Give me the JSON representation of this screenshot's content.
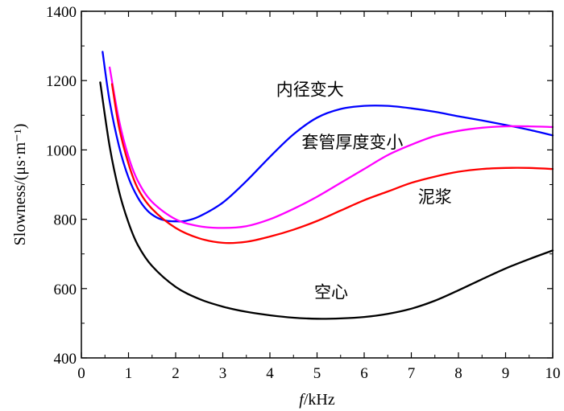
{
  "chart_data": {
    "type": "line",
    "title": "",
    "xlabel": "f/kHz",
    "xlabel_italic": "f",
    "xlabel_rest": "/kHz",
    "ylabel": "Slowness/(μs·m⁻¹)",
    "xlim": [
      0,
      10
    ],
    "ylim": [
      400,
      1400
    ],
    "x_major_ticks": [
      0,
      1,
      2,
      3,
      4,
      5,
      6,
      7,
      8,
      9,
      10
    ],
    "x_tick_labels": [
      "0",
      "1",
      "2",
      "3",
      "4",
      "5",
      "6",
      "7",
      "8",
      "9",
      "10"
    ],
    "y_major_ticks": [
      400,
      600,
      800,
      1000,
      1200,
      1400
    ],
    "y_tick_labels": [
      "400",
      "600",
      "800",
      "1000",
      "1200",
      "1400"
    ],
    "grid": false,
    "series": [
      {
        "name": "空心",
        "color": "#000000",
        "x": [
          0.4,
          0.6,
          0.8,
          1.0,
          1.2,
          1.5,
          2.0,
          2.5,
          3.0,
          3.5,
          4.0,
          4.5,
          5.0,
          5.5,
          6.0,
          6.5,
          7.0,
          7.5,
          8.0,
          8.5,
          9.0,
          9.5,
          10.0
        ],
        "y": [
          1195,
          1010,
          880,
          790,
          725,
          665,
          605,
          570,
          548,
          533,
          523,
          516,
          513,
          514,
          518,
          527,
          542,
          565,
          595,
          627,
          658,
          685,
          710
        ]
      },
      {
        "name": "内径变大",
        "color": "#0000ff",
        "x": [
          0.45,
          0.6,
          0.8,
          1.0,
          1.2,
          1.4,
          1.6,
          1.8,
          2.0,
          2.2,
          2.5,
          3.0,
          3.5,
          4.0,
          4.5,
          5.0,
          5.5,
          6.0,
          6.5,
          7.0,
          7.5,
          8.0,
          8.5,
          9.0,
          9.5,
          10.0
        ],
        "y": [
          1283,
          1140,
          1010,
          920,
          862,
          825,
          805,
          796,
          794,
          795,
          808,
          848,
          910,
          980,
          1045,
          1093,
          1118,
          1127,
          1127,
          1120,
          1110,
          1097,
          1085,
          1072,
          1058,
          1042
        ]
      },
      {
        "name": "套管厚度变小",
        "color": "#ff00ff",
        "x": [
          0.6,
          0.8,
          1.0,
          1.2,
          1.5,
          2.0,
          2.5,
          3.0,
          3.5,
          4.0,
          4.5,
          5.0,
          5.5,
          6.0,
          6.5,
          7.0,
          7.5,
          8.0,
          8.5,
          9.0,
          9.5,
          10.0
        ],
        "y": [
          1238,
          1085,
          980,
          910,
          850,
          800,
          780,
          775,
          780,
          800,
          830,
          865,
          905,
          945,
          985,
          1015,
          1040,
          1055,
          1064,
          1068,
          1068,
          1066
        ]
      },
      {
        "name": "泥浆",
        "color": "#ff0000",
        "x": [
          0.65,
          0.8,
          1.0,
          1.2,
          1.5,
          2.0,
          2.5,
          3.0,
          3.5,
          4.0,
          4.5,
          5.0,
          5.5,
          6.0,
          6.5,
          7.0,
          7.5,
          8.0,
          8.5,
          9.0,
          9.5,
          10.0
        ],
        "y": [
          1190,
          1065,
          960,
          888,
          830,
          775,
          745,
          732,
          735,
          750,
          770,
          795,
          825,
          855,
          880,
          905,
          923,
          937,
          945,
          948,
          948,
          945
        ]
      }
    ],
    "annotations": [
      {
        "text": "内径变大",
        "x": 4.85,
        "y": 1158
      },
      {
        "text": "套管厚度变小",
        "x": 5.75,
        "y": 1006
      },
      {
        "text": "泥浆",
        "x": 7.5,
        "y": 848
      },
      {
        "text": "空心",
        "x": 5.3,
        "y": 573
      }
    ]
  }
}
